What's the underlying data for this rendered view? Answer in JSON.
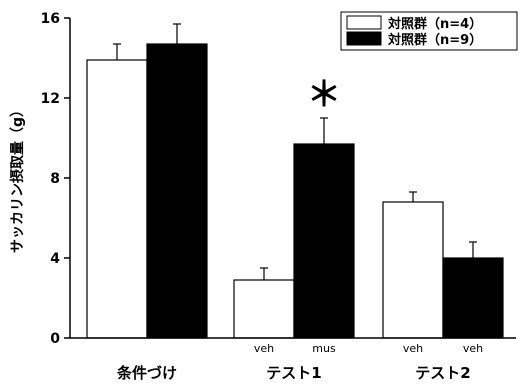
{
  "chart_data": {
    "type": "bar",
    "title": "",
    "xlabel": "",
    "ylabel": "サッカリン摂取量（g）",
    "ylim": [
      0,
      16
    ],
    "yticks": [
      0,
      4,
      8,
      12,
      16
    ],
    "grid": false,
    "legend_position": "top-right",
    "groups": [
      {
        "label": "条件づけ",
        "bars": [
          {
            "series": "対照群（n=4）",
            "value": 13.9,
            "error": 0.8,
            "sublabel": ""
          },
          {
            "series": "対照群（n=9）",
            "value": 14.7,
            "error": 1.0,
            "sublabel": ""
          }
        ]
      },
      {
        "label": "テスト1",
        "bars": [
          {
            "series": "対照群（n=4）",
            "value": 2.9,
            "error": 0.6,
            "sublabel": "veh"
          },
          {
            "series": "対照群（n=9）",
            "value": 9.7,
            "error": 1.3,
            "sublabel": "mus"
          }
        ]
      },
      {
        "label": "テスト2",
        "bars": [
          {
            "series": "対照群（n=4）",
            "value": 6.8,
            "error": 0.5,
            "sublabel": "veh"
          },
          {
            "series": "対照群（n=9）",
            "value": 4.0,
            "error": 0.8,
            "sublabel": "veh"
          }
        ]
      }
    ],
    "series": [
      {
        "name": "対照群（n=4）",
        "color": "#ffffff"
      },
      {
        "name": "対照群（n=9）",
        "color": "#000000"
      }
    ],
    "annotations": [
      {
        "text": "＊",
        "group": 1,
        "bar": 1
      }
    ]
  }
}
